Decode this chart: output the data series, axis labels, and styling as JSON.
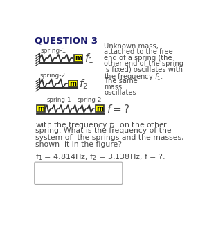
{
  "title": "QUESTION 3",
  "background_color": "#ffffff",
  "text_color": "#4a4a4a",
  "title_color": "#1a1a6e",
  "yellow": "#ffff00",
  "fig_width": 2.86,
  "fig_height": 3.47,
  "answer_box_color": "#ffffff",
  "spring1_label": "spring-1",
  "spring2_label": "spring-2",
  "right_text": [
    "Unknown mass,",
    "attached to the free",
    "end of a spring (the",
    "other end of the spring",
    "is fixed) oscillates with",
    "the frequency f_1.",
    "The same",
    "mass",
    "oscillates"
  ],
  "para_text": [
    "with the frequency f_2  on the other",
    "spring. What is the frequency of the",
    "system of  the springs and the masses,",
    "shown  it in the figure?"
  ],
  "freq_line": "f_1 = 4.814Hz, f_2 = 3.138Hz, f = ?."
}
